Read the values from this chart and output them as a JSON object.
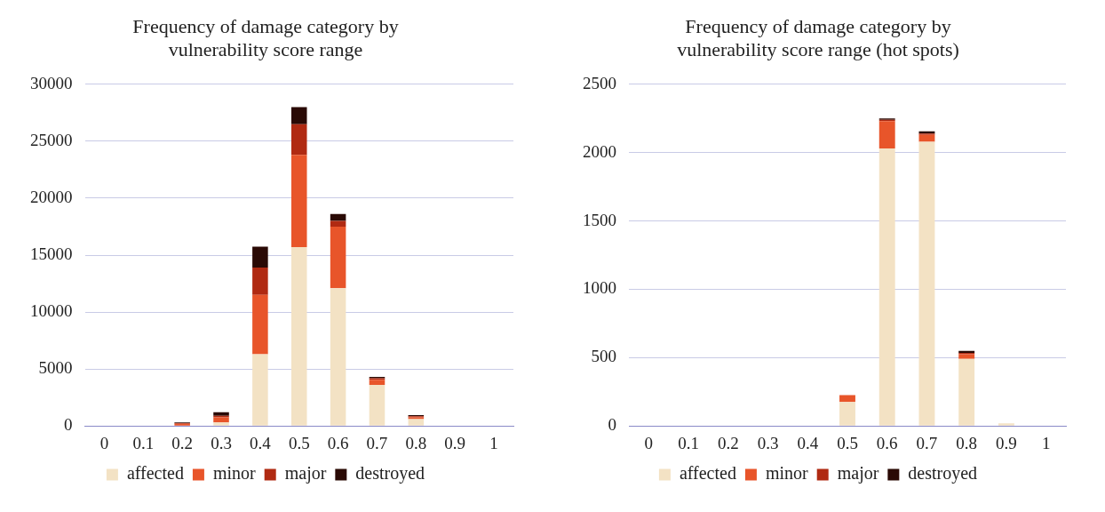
{
  "chart_data": [
    {
      "type": "bar",
      "title": "Frequency of damage category by vulnerability score range",
      "stacked": true,
      "categories": [
        "0",
        "0.1",
        "0.2",
        "0.3",
        "0.4",
        "0.5",
        "0.6",
        "0.7",
        "0.8",
        "0.9",
        "1"
      ],
      "series": [
        {
          "name": "affected",
          "color": "#f3e2c4",
          "values": [
            0,
            0,
            null,
            300,
            6300,
            15700,
            12100,
            3600,
            600,
            0,
            0
          ]
        },
        {
          "name": "minor",
          "color": "#e8552a",
          "values": [
            0,
            0,
            200,
            450,
            5200,
            8100,
            5400,
            450,
            150,
            0,
            0
          ]
        },
        {
          "name": "major",
          "color": "#b02a12",
          "values": [
            0,
            0,
            50,
            150,
            2400,
            2700,
            500,
            150,
            100,
            0,
            0
          ]
        },
        {
          "name": "destroyed",
          "color": "#2a0a05",
          "values": [
            0,
            0,
            50,
            300,
            1850,
            1500,
            600,
            100,
            100,
            0,
            0
          ]
        }
      ],
      "ylim": [
        0,
        30000
      ],
      "yticks": [
        0,
        5000,
        10000,
        15000,
        20000,
        25000,
        30000
      ],
      "grid": "y",
      "legend": "bottom"
    },
    {
      "type": "bar",
      "title": "Frequency of damage category by vulnerability score range (hot spots)",
      "stacked": true,
      "categories": [
        "0",
        "0.1",
        "0.2",
        "0.3",
        "0.4",
        "0.5",
        "0.6",
        "0.7",
        "0.8",
        "0.9",
        "1"
      ],
      "series": [
        {
          "name": "affected",
          "color": "#f3e2c4",
          "values": [
            0,
            0,
            0,
            0,
            0,
            175,
            2030,
            2080,
            490,
            20,
            0
          ]
        },
        {
          "name": "minor",
          "color": "#e8552a",
          "values": [
            0,
            0,
            0,
            0,
            0,
            50,
            200,
            50,
            35,
            0,
            0
          ]
        },
        {
          "name": "major",
          "color": "#b02a12",
          "values": [
            0,
            0,
            0,
            0,
            0,
            0,
            10,
            10,
            10,
            0,
            0
          ]
        },
        {
          "name": "destroyed",
          "color": "#2a0a05",
          "values": [
            0,
            0,
            0,
            0,
            0,
            0,
            10,
            15,
            15,
            0,
            0
          ]
        }
      ],
      "ylim": [
        0,
        2500
      ],
      "yticks": [
        0,
        500,
        1000,
        1500,
        2000,
        2500
      ],
      "grid": "y",
      "legend": "bottom"
    }
  ]
}
